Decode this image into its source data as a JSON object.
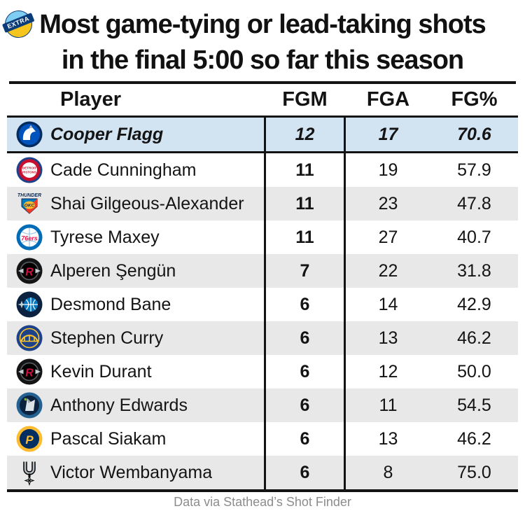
{
  "badge": {
    "label": "EXTRA"
  },
  "title": {
    "line1": "Most game-tying or lead-taking shots",
    "line2": "in the final 5:00 so far this season"
  },
  "table": {
    "headers": {
      "player": "Player",
      "fgm": "FGM",
      "fga": "FGA",
      "fgpct": "FG%"
    },
    "rows": [
      {
        "player": "Cooper Flagg",
        "logo": "mavericks",
        "fgm": "12",
        "fga": "17",
        "fgpct": "70.6",
        "highlight": true
      },
      {
        "player": "Cade Cunningham",
        "logo": "pistons",
        "fgm": "11",
        "fga": "19",
        "fgpct": "57.9"
      },
      {
        "player": "Shai Gilgeous-Alexander",
        "logo": "thunder",
        "fgm": "11",
        "fga": "23",
        "fgpct": "47.8"
      },
      {
        "player": "Tyrese Maxey",
        "logo": "sixers",
        "fgm": "11",
        "fga": "27",
        "fgpct": "40.7"
      },
      {
        "player": "Alperen Şengün",
        "logo": "rockets",
        "fgm": "7",
        "fga": "22",
        "fgpct": "31.8"
      },
      {
        "player": "Desmond Bane",
        "logo": "magic",
        "fgm": "6",
        "fga": "14",
        "fgpct": "42.9"
      },
      {
        "player": "Stephen Curry",
        "logo": "warriors",
        "fgm": "6",
        "fga": "13",
        "fgpct": "46.2"
      },
      {
        "player": "Kevin Durant",
        "logo": "rockets",
        "fgm": "6",
        "fga": "12",
        "fgpct": "50.0"
      },
      {
        "player": "Anthony Edwards",
        "logo": "timberwolves",
        "fgm": "6",
        "fga": "11",
        "fgpct": "54.5"
      },
      {
        "player": "Pascal Siakam",
        "logo": "pacers",
        "fgm": "6",
        "fga": "13",
        "fgpct": "46.2"
      },
      {
        "player": "Victor Wembanyama",
        "logo": "spurs",
        "fgm": "6",
        "fga": "8",
        "fgpct": "75.0"
      }
    ]
  },
  "footer": {
    "credit": "Data via Stathead’s Shot Finder"
  },
  "colors": {
    "highlight_row": "#d2e3f2",
    "alt_row": "#e8e8e8",
    "border": "#131313",
    "footer_text": "#8c8c8c"
  },
  "chart_data": {
    "type": "table",
    "title": "Most game-tying or lead-taking shots in the final 5:00 so far this season",
    "columns": [
      "Player",
      "FGM",
      "FGA",
      "FG%"
    ],
    "rows": [
      [
        "Cooper Flagg",
        12,
        17,
        70.6
      ],
      [
        "Cade Cunningham",
        11,
        19,
        57.9
      ],
      [
        "Shai Gilgeous-Alexander",
        11,
        23,
        47.8
      ],
      [
        "Tyrese Maxey",
        11,
        27,
        40.7
      ],
      [
        "Alperen Şengün",
        7,
        22,
        31.8
      ],
      [
        "Desmond Bane",
        6,
        14,
        42.9
      ],
      [
        "Stephen Curry",
        6,
        13,
        46.2
      ],
      [
        "Kevin Durant",
        6,
        12,
        50.0
      ],
      [
        "Anthony Edwards",
        6,
        11,
        54.5
      ],
      [
        "Pascal Siakam",
        6,
        13,
        46.2
      ],
      [
        "Victor Wembanyama",
        6,
        8,
        75.0
      ]
    ],
    "highlighted_row": "Cooper Flagg",
    "source": "Data via Stathead’s Shot Finder"
  }
}
